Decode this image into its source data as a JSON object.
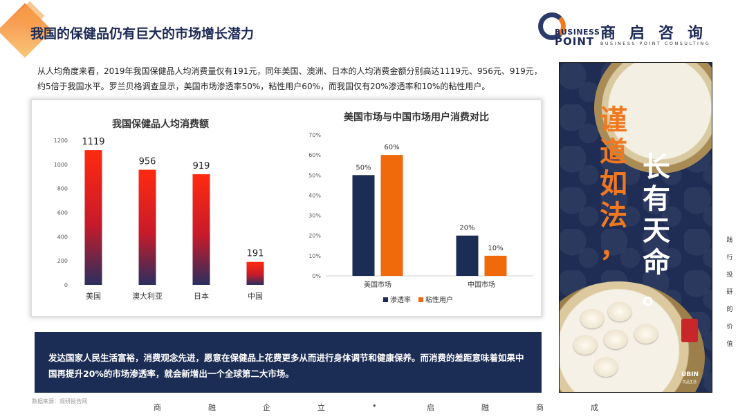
{
  "title": "我国的保健品仍有巨大的市场增长潜力",
  "logo": {
    "en_line1": "BUSINESS",
    "en_line2": "POINT",
    "cn": "商启咨询",
    "sub": "BUSINESS POINT CONSULTING"
  },
  "intro": "从人均角度来看，2019年我国保健品人均消费量仅有191元，同年美国、澳洲、日本的人均消费金额分别高达1119元、956元、919元，约5倍于我国水平。罗兰贝格调查显示，美国市场渗透率50%，粘性用户60%，而我国仅有20%渗透率和10%的粘性用户。",
  "summary": "发达国家人民生活富裕，消费观念先进，愿意在保健品上花费更多从而进行身体调节和健康保养。而消费的差距意味着如果中国再提升20%的市场渗透率，就会新增出一个全球第二大市场。",
  "source": "数据来源：观研报告网",
  "footer_slogan": [
    "商",
    "融",
    "企",
    "立",
    "•",
    "启",
    "融",
    "商",
    "成"
  ],
  "side_text": [
    "践",
    "行",
    "投",
    "研",
    "的",
    "价",
    "值"
  ],
  "poster": {
    "col1": [
      "谨",
      "道",
      "如",
      "法",
      "，"
    ],
    "col2": [
      "长",
      "有",
      "天",
      "命",
      "。"
    ],
    "brand": "UBIN",
    "brand_sub": "优品生活"
  },
  "colors": {
    "navy": "#1c2d55",
    "orange": "#f0690a",
    "bar_top": "#ff2a10",
    "bar_bottom": "#2a2f5e"
  },
  "chart_data": [
    {
      "type": "bar",
      "title": "我国保健品人均消费额",
      "categories": [
        "美国",
        "澳大利亚",
        "日本",
        "中国"
      ],
      "values": [
        1119,
        956,
        919,
        191
      ],
      "data_labels": [
        "1119",
        "956",
        "919",
        "191"
      ],
      "ylim": [
        0,
        1200
      ],
      "yticks": [
        "0",
        "200",
        "400",
        "600",
        "800",
        "1000",
        "1200"
      ],
      "grid": false,
      "legend": "none"
    },
    {
      "type": "bar",
      "title": "美国市场与中国市场用户消费对比",
      "categories": [
        "美国市场",
        "中国市场"
      ],
      "series": [
        {
          "name": "渗透率",
          "values": [
            50,
            20
          ],
          "labels": [
            "50%",
            "20%"
          ],
          "color": "#1c2d55"
        },
        {
          "name": "粘性用户",
          "values": [
            60,
            10
          ],
          "labels": [
            "60%",
            "10%"
          ],
          "color": "#f0690a"
        }
      ],
      "ylim": [
        0,
        70
      ],
      "yticks": [
        "0%",
        "10%",
        "20%",
        "30%",
        "40%",
        "50%",
        "60%",
        "70%"
      ],
      "grid": false,
      "legend": "bottom"
    }
  ]
}
